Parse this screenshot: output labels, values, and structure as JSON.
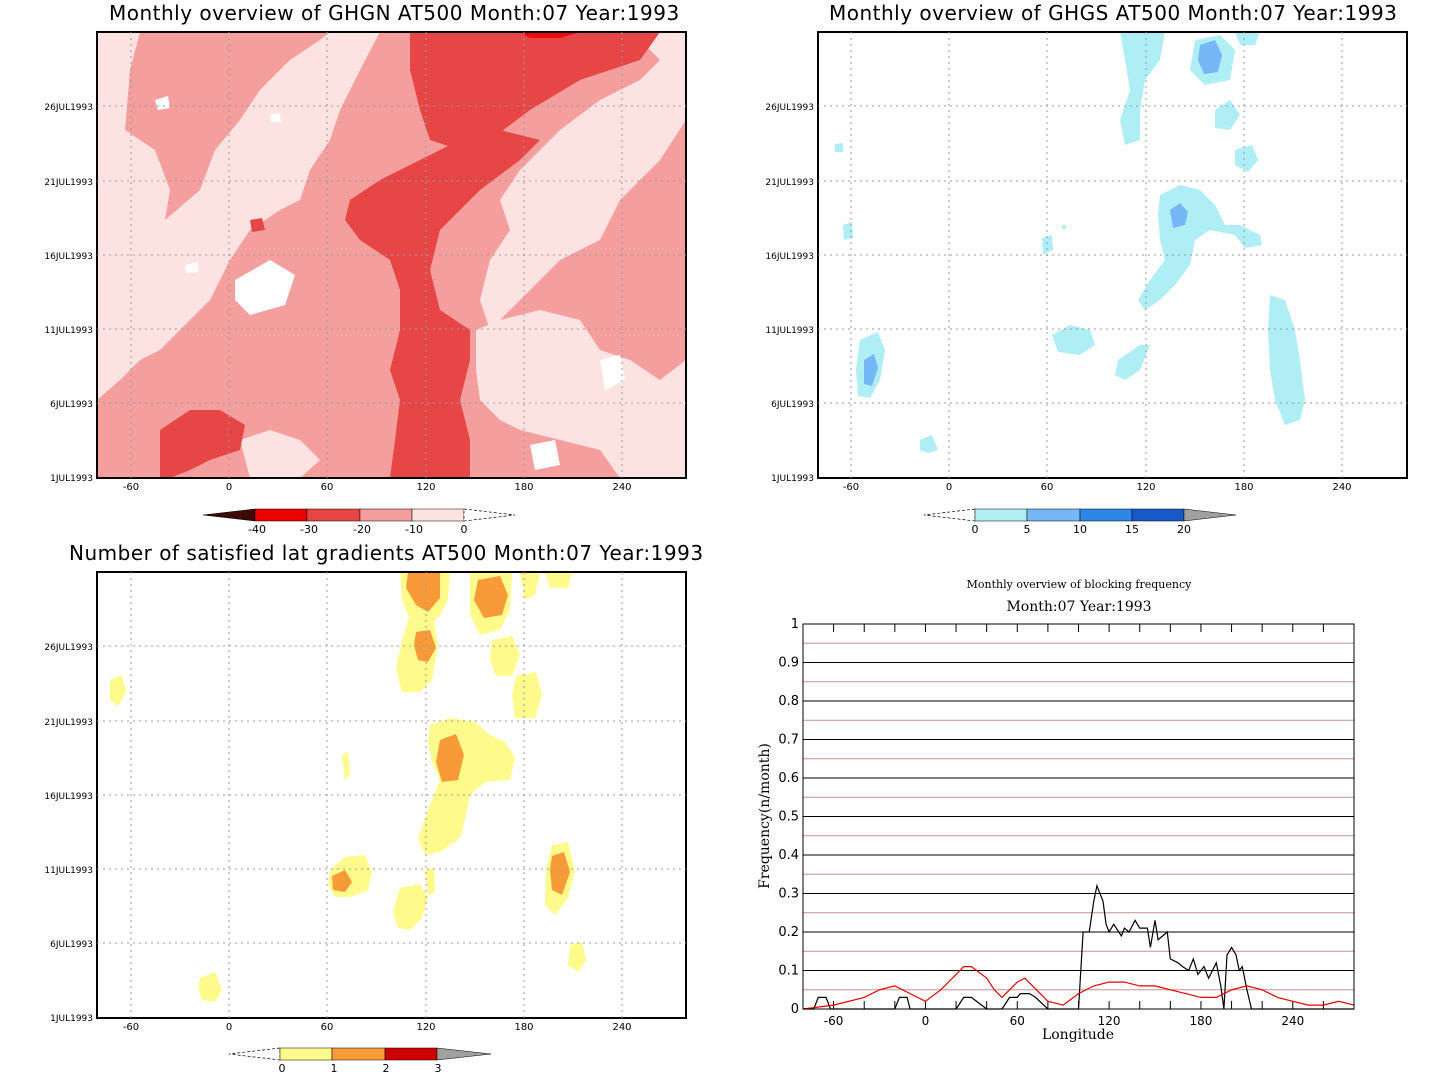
{
  "time_labels": [
    "26JUL1993",
    "21JUL1993",
    "16JUL1993",
    "11JUL1993",
    "6JUL1993",
    "1JUL1993"
  ],
  "lon_labels": [
    "-60",
    "0",
    "60",
    "120",
    "180",
    "240"
  ],
  "chart_data": [
    {
      "type": "heatmap",
      "title": "Monthly overview of GHGN AT500 Month:07 Year:1993",
      "colorbar": {
        "labels": [
          "-40",
          "-30",
          "-20",
          "-10",
          "0"
        ],
        "colors": [
          "#3d0a05",
          "#ee0000",
          "#e64646",
          "#f59e9e",
          "#fde2e2"
        ]
      }
    },
    {
      "type": "heatmap",
      "title": "Monthly overview of GHGS AT500 Month:07 Year:1993",
      "colorbar": {
        "labels": [
          "0",
          "5",
          "10",
          "15",
          "20"
        ],
        "colors": [
          "#afeef5",
          "#75b8f5",
          "#2e86e6",
          "#1859c8",
          "#a0a0a0"
        ]
      }
    },
    {
      "type": "heatmap",
      "title": "Number of satisfied lat gradients AT500 Month:07 Year:1993",
      "colorbar": {
        "labels": [
          "0",
          "1",
          "2",
          "3"
        ],
        "colors": [
          "#fffa8c",
          "#f99a38",
          "#cc0000",
          "#a0a0a0"
        ]
      }
    },
    {
      "type": "line",
      "title": "Monthly overview of blocking frequency",
      "subtitle": "Month:07 Year:1993",
      "xlabel": "Longitude",
      "ylabel": "Frequency(n/month)",
      "xlim": [
        -80,
        280
      ],
      "ylim": [
        0,
        1
      ],
      "x_ticks": [
        "-60",
        "0",
        "60",
        "120",
        "180",
        "240"
      ],
      "y_ticks": [
        "0",
        "0.1",
        "0.2",
        "0.3",
        "0.4",
        "0.5",
        "0.6",
        "0.7",
        "0.8",
        "0.9",
        "1"
      ],
      "grid": true,
      "series": [
        {
          "color": "#000000",
          "x": [
            -80,
            -73,
            -70,
            -65,
            -62,
            -60,
            -20,
            -17,
            -12,
            -10,
            20,
            25,
            30,
            40,
            50,
            55,
            60,
            62,
            68,
            72,
            80,
            85,
            90,
            100,
            103,
            107,
            110,
            112,
            116,
            118,
            120,
            123,
            128,
            130,
            133,
            137,
            140,
            145,
            147,
            150,
            152,
            155,
            158,
            160,
            165,
            168,
            172,
            175,
            178,
            182,
            185,
            190,
            193,
            195,
            197,
            200,
            203,
            205,
            207,
            210,
            213,
            280
          ],
          "y": [
            0,
            0,
            0.03,
            0.03,
            0,
            0,
            0,
            0.03,
            0.03,
            0,
            0,
            0.03,
            0.03,
            0,
            0,
            0.03,
            0.03,
            0.04,
            0.04,
            0.03,
            0,
            0,
            0,
            0,
            0.2,
            0.2,
            0.28,
            0.32,
            0.28,
            0.22,
            0.2,
            0.22,
            0.19,
            0.21,
            0.2,
            0.23,
            0.21,
            0.21,
            0.16,
            0.23,
            0.18,
            0.19,
            0.2,
            0.13,
            0.12,
            0.11,
            0.1,
            0.13,
            0.09,
            0.11,
            0.08,
            0.12,
            0.06,
            0,
            0.14,
            0.16,
            0.14,
            0.1,
            0.11,
            0.05,
            0,
            0
          ]
        },
        {
          "color": "#e60000",
          "x": [
            -80,
            -60,
            -40,
            -30,
            -20,
            -10,
            0,
            10,
            20,
            25,
            30,
            40,
            45,
            50,
            60,
            65,
            70,
            80,
            90,
            100,
            110,
            120,
            130,
            140,
            150,
            160,
            170,
            180,
            190,
            200,
            210,
            220,
            230,
            240,
            250,
            260,
            270,
            280
          ],
          "y": [
            0,
            0.01,
            0.03,
            0.05,
            0.06,
            0.04,
            0.02,
            0.05,
            0.09,
            0.11,
            0.11,
            0.08,
            0.05,
            0.03,
            0.07,
            0.08,
            0.06,
            0.02,
            0.01,
            0.04,
            0.06,
            0.07,
            0.07,
            0.06,
            0.06,
            0.05,
            0.04,
            0.03,
            0.03,
            0.05,
            0.06,
            0.05,
            0.03,
            0.02,
            0.01,
            0.01,
            0.02,
            0.01
          ]
        }
      ]
    }
  ]
}
